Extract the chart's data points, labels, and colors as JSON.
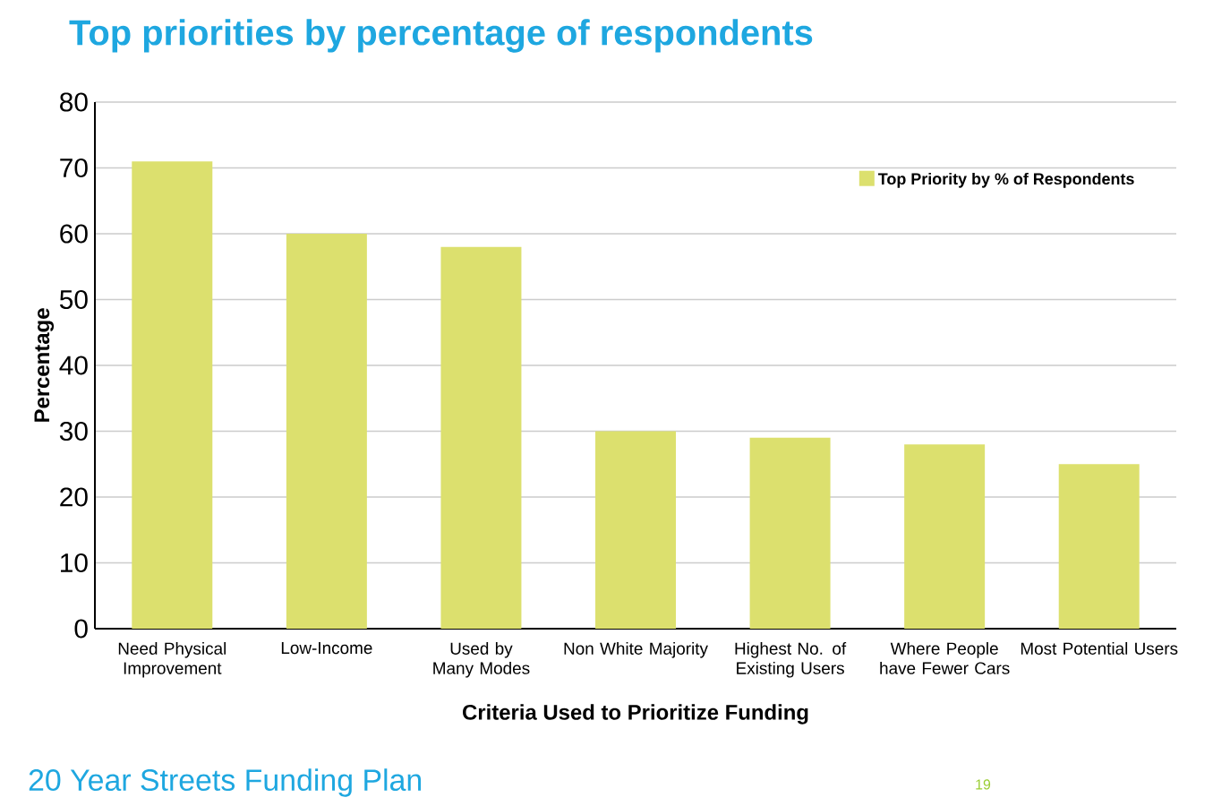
{
  "chart_data": {
    "type": "bar",
    "title": "Top priorities by percentage of respondents",
    "xlabel": "Criteria Used to Prioritize Funding",
    "ylabel": "Percentage",
    "categories": [
      "Need Physical Improvement",
      "Low-Income",
      "Used by Many Modes",
      "Non White Majority",
      "Highest No. of Existing Users",
      "Where People have Fewer Cars",
      "Most Potential Users"
    ],
    "series": [
      {
        "name": "Top Priority by % of Respondents",
        "color": "#dce06e",
        "values": [
          71,
          60,
          58,
          30,
          29,
          28,
          25
        ]
      }
    ],
    "ylim": [
      0,
      80
    ],
    "yticks": [
      0,
      10,
      20,
      30,
      40,
      50,
      60,
      70,
      80
    ],
    "grid": "y",
    "legend": "top right",
    "annotations": [
      "20 Year Streets Funding Plan",
      "19"
    ]
  }
}
